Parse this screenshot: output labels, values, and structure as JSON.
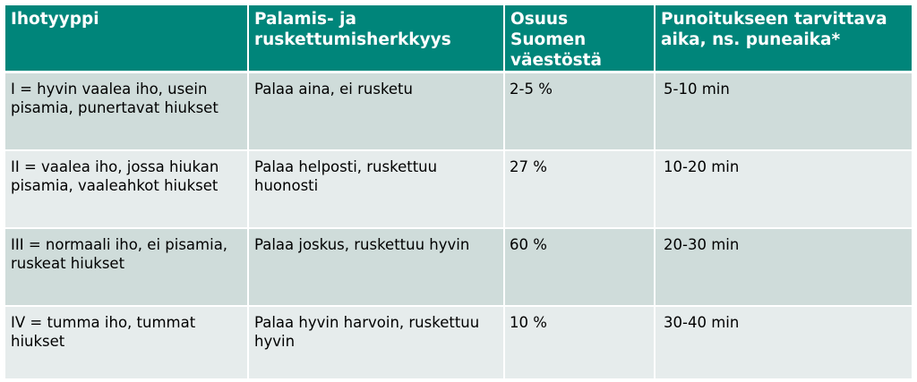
{
  "table": {
    "headers": [
      "Ihotyyppi",
      "Palamis- ja ruskettumisherkkyys",
      "Osuus Suomen väestöstä",
      "Punoitukseen tarvittava aika, ns. puneaika*"
    ],
    "rows": [
      [
        "I = hyvin vaalea iho, usein pisamia, punertavat hiukset",
        "Palaa aina, ei rusketu",
        "2-5 %",
        "5-10 min"
      ],
      [
        "II = vaalea iho, jossa hiukan pisamia, vaaleahkot hiukset",
        "Palaa helposti, ruskettuu huonosti",
        "27 %",
        "10-20 min"
      ],
      [
        "III = normaali iho, ei pisamia, ruskeat hiukset",
        "Palaa joskus, ruskettuu hyvin",
        "60 %",
        "20-30 min"
      ],
      [
        "IV = tumma iho, tummat hiukset",
        "Palaa hyvin harvoin, ruskettuu hyvin",
        "10 %",
        "30-40 min"
      ]
    ]
  },
  "colors": {
    "header_bg": "#00857a",
    "header_text": "#ffffff",
    "row_odd_bg": "#cfdcda",
    "row_even_bg": "#e6ecec"
  }
}
